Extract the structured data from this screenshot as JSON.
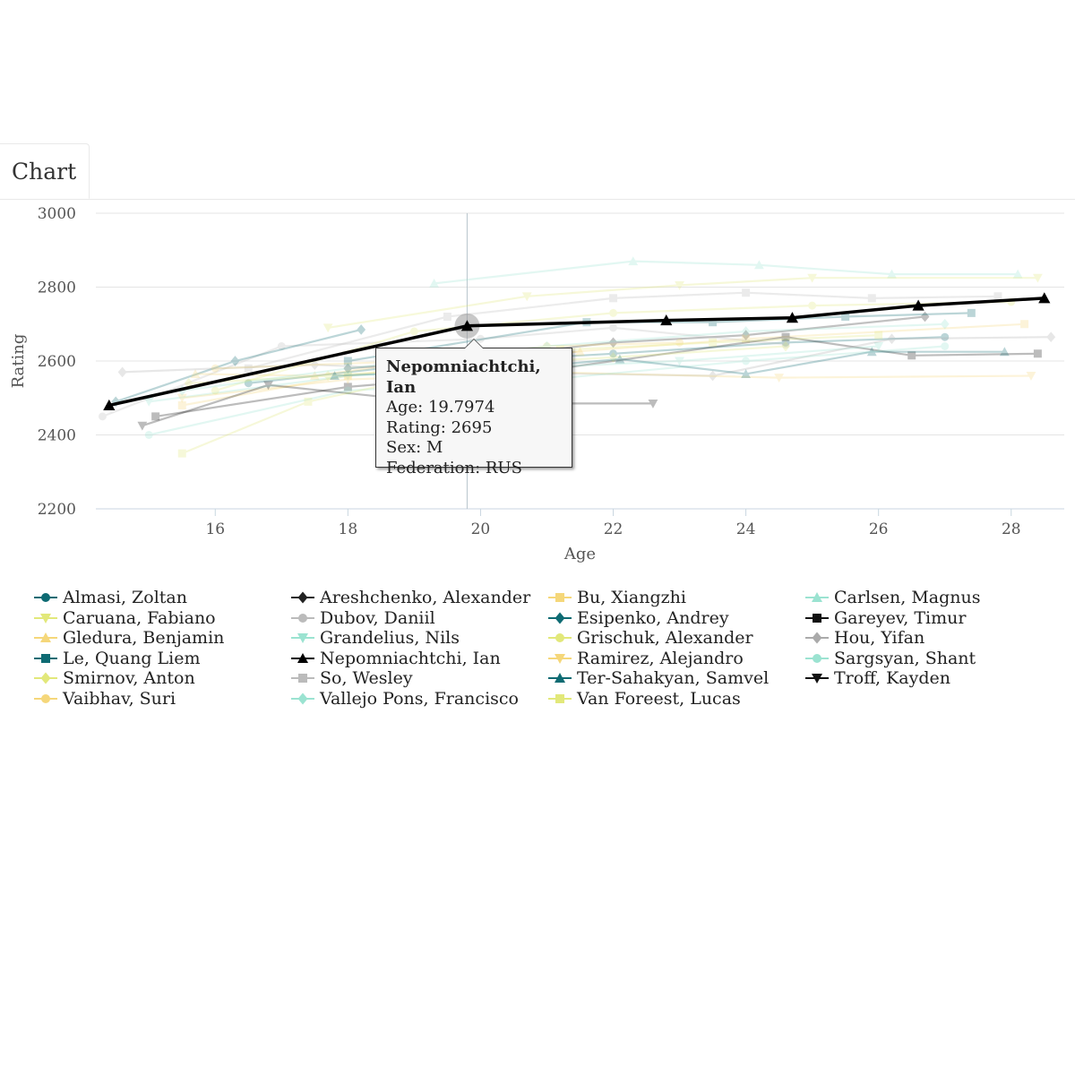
{
  "tab": {
    "label": "Chart"
  },
  "chart_data": {
    "type": "line",
    "xlabel": "Age",
    "ylabel": "Rating",
    "xlim": [
      14.2,
      28.8
    ],
    "ylim": [
      2200,
      3000
    ],
    "x_ticks": [
      16,
      18,
      20,
      22,
      24,
      26,
      28
    ],
    "y_ticks": [
      2200,
      2400,
      2600,
      2800,
      3000
    ],
    "grid": "horizontal",
    "legend_placement": "bottom",
    "highlighted_series": "Nepomniachtchi, Ian",
    "series": [
      {
        "name": "Almasi, Zoltan",
        "color": "#0e6b73",
        "marker": "circle",
        "points": [
          [
            16.5,
            2540
          ],
          [
            19,
            2590
          ],
          [
            22,
            2620
          ],
          [
            24.6,
            2650
          ],
          [
            27,
            2665
          ]
        ]
      },
      {
        "name": "Areshchenko, Alexander",
        "color": "#222222",
        "marker": "diamond",
        "points": [
          [
            18,
            2580
          ],
          [
            20,
            2610
          ],
          [
            22,
            2650
          ],
          [
            24,
            2670
          ],
          [
            26.7,
            2720
          ]
        ]
      },
      {
        "name": "Bu, Xiangzhi",
        "color": "#f5d77a",
        "marker": "square",
        "points": [
          [
            15.5,
            2480
          ],
          [
            18,
            2560
          ],
          [
            21,
            2620
          ],
          [
            24,
            2660
          ],
          [
            28.2,
            2700
          ]
        ]
      },
      {
        "name": "Carlsen, Magnus",
        "color": "#9be3d1",
        "marker": "triangle-up",
        "points": [
          [
            19.3,
            2810
          ],
          [
            22.3,
            2870
          ],
          [
            24.2,
            2860
          ],
          [
            26.2,
            2835
          ],
          [
            28.1,
            2835
          ]
        ]
      },
      {
        "name": "Caruana, Fabiano",
        "color": "#e2e87a",
        "marker": "triangle-down",
        "points": [
          [
            17.7,
            2690
          ],
          [
            20.7,
            2775
          ],
          [
            23,
            2805
          ],
          [
            25,
            2825
          ],
          [
            28.4,
            2825
          ]
        ]
      },
      {
        "name": "Dubov, Daniil",
        "color": "#bbbbbb",
        "marker": "circle",
        "points": [
          [
            14.3,
            2450
          ],
          [
            17,
            2640
          ],
          [
            20,
            2660
          ],
          [
            22,
            2690
          ],
          [
            24.6,
            2645
          ]
        ]
      },
      {
        "name": "Esipenko, Andrey",
        "color": "#0e6b73",
        "marker": "diamond",
        "points": [
          [
            14.5,
            2490
          ],
          [
            16.3,
            2600
          ],
          [
            18.2,
            2685
          ]
        ]
      },
      {
        "name": "Gareyev, Timur",
        "color": "#111111",
        "marker": "square",
        "points": [
          [
            15.1,
            2450
          ],
          [
            18,
            2530
          ],
          [
            21,
            2575
          ],
          [
            24.6,
            2665
          ],
          [
            26.5,
            2615
          ],
          [
            28.4,
            2620
          ]
        ]
      },
      {
        "name": "Gledura, Benjamin",
        "color": "#f5d77a",
        "marker": "triangle-up",
        "points": [
          [
            15.7,
            2565
          ],
          [
            17.5,
            2560
          ],
          [
            19.5,
            2610
          ],
          [
            21.5,
            2625
          ]
        ]
      },
      {
        "name": "Grandelius, Nils",
        "color": "#9be3d1",
        "marker": "triangle-down",
        "points": [
          [
            15,
            2490
          ],
          [
            18,
            2560
          ],
          [
            20.5,
            2580
          ],
          [
            23,
            2600
          ],
          [
            26,
            2640
          ]
        ]
      },
      {
        "name": "Grischuk, Alexander",
        "color": "#e2e87a",
        "marker": "circle",
        "points": [
          [
            16,
            2520
          ],
          [
            19,
            2680
          ],
          [
            22,
            2730
          ],
          [
            25,
            2750
          ],
          [
            28,
            2760
          ]
        ]
      },
      {
        "name": "Hou, Yifan",
        "color": "#aaaaaa",
        "marker": "diamond",
        "points": [
          [
            14.6,
            2570
          ],
          [
            17.5,
            2590
          ],
          [
            20,
            2570
          ],
          [
            23.5,
            2560
          ],
          [
            26.2,
            2660
          ],
          [
            28.6,
            2665
          ]
        ]
      },
      {
        "name": "Le, Quang Liem",
        "color": "#0e6b73",
        "marker": "square",
        "points": [
          [
            18,
            2600
          ],
          [
            21.6,
            2705
          ],
          [
            23.5,
            2705
          ],
          [
            25.5,
            2720
          ],
          [
            27.4,
            2730
          ]
        ]
      },
      {
        "name": "Nepomniachtchi, Ian",
        "color": "#000000",
        "marker": "triangle-up",
        "points": [
          [
            14.4,
            2480
          ],
          [
            19.7974,
            2695
          ],
          [
            22.8,
            2710
          ],
          [
            24.7,
            2717
          ],
          [
            26.6,
            2750
          ],
          [
            28.5,
            2770
          ]
        ]
      },
      {
        "name": "Ramirez, Alejandro",
        "color": "#f5d77a",
        "marker": "triangle-down",
        "points": [
          [
            15.5,
            2500
          ],
          [
            18,
            2550
          ],
          [
            21,
            2570
          ],
          [
            24.5,
            2555
          ],
          [
            28.3,
            2560
          ]
        ]
      },
      {
        "name": "Sargsyan, Shant",
        "color": "#9be3d1",
        "marker": "circle",
        "points": [
          [
            15,
            2400
          ],
          [
            18,
            2520
          ],
          [
            21,
            2550
          ],
          [
            24,
            2600
          ],
          [
            27,
            2640
          ]
        ]
      },
      {
        "name": "Smirnov, Anton",
        "color": "#e2e87a",
        "marker": "diamond",
        "points": [
          [
            15.6,
            2540
          ],
          [
            17.7,
            2560
          ],
          [
            20,
            2590
          ],
          [
            22,
            2610
          ],
          [
            24.6,
            2640
          ]
        ]
      },
      {
        "name": "So, Wesley",
        "color": "#bbbbbb",
        "marker": "square",
        "points": [
          [
            16.5,
            2580
          ],
          [
            19.5,
            2720
          ],
          [
            22,
            2770
          ],
          [
            24,
            2785
          ],
          [
            25.9,
            2770
          ],
          [
            27.8,
            2775
          ]
        ]
      },
      {
        "name": "Ter-Sahakyan, Samvel",
        "color": "#0e6b73",
        "marker": "triangle-up",
        "points": [
          [
            17.8,
            2560
          ],
          [
            20.5,
            2580
          ],
          [
            22.1,
            2605
          ],
          [
            24,
            2565
          ],
          [
            25.9,
            2625
          ],
          [
            27.9,
            2625
          ]
        ]
      },
      {
        "name": "Troff, Kayden",
        "color": "#111111",
        "marker": "triangle-down",
        "points": [
          [
            14.9,
            2425
          ],
          [
            16.8,
            2535
          ],
          [
            18.7,
            2500
          ],
          [
            20.7,
            2485
          ],
          [
            22.6,
            2485
          ]
        ]
      },
      {
        "name": "Vaibhav, Suri",
        "color": "#f5d77a",
        "marker": "circle",
        "points": [
          [
            16,
            2580
          ],
          [
            19,
            2600
          ],
          [
            21,
            2640
          ],
          [
            23,
            2650
          ]
        ]
      },
      {
        "name": "Vallejo Pons, Francisco",
        "color": "#9be3d1",
        "marker": "diamond",
        "points": [
          [
            15.5,
            2520
          ],
          [
            18,
            2580
          ],
          [
            21,
            2640
          ],
          [
            24,
            2680
          ],
          [
            27,
            2700
          ]
        ]
      },
      {
        "name": "Van Foreest, Lucas",
        "color": "#e2e87a",
        "marker": "square",
        "points": [
          [
            15.5,
            2350
          ],
          [
            17.4,
            2490
          ],
          [
            19.2,
            2560
          ],
          [
            21.2,
            2630
          ],
          [
            23.5,
            2650
          ],
          [
            26,
            2670
          ]
        ]
      }
    ]
  },
  "tooltip": {
    "title": "Nepomniachtchi, Ian",
    "age": "Age: 19.7974",
    "rating": "Rating: 2695",
    "sex": "Sex: M",
    "federation": "Federation: RUS"
  }
}
